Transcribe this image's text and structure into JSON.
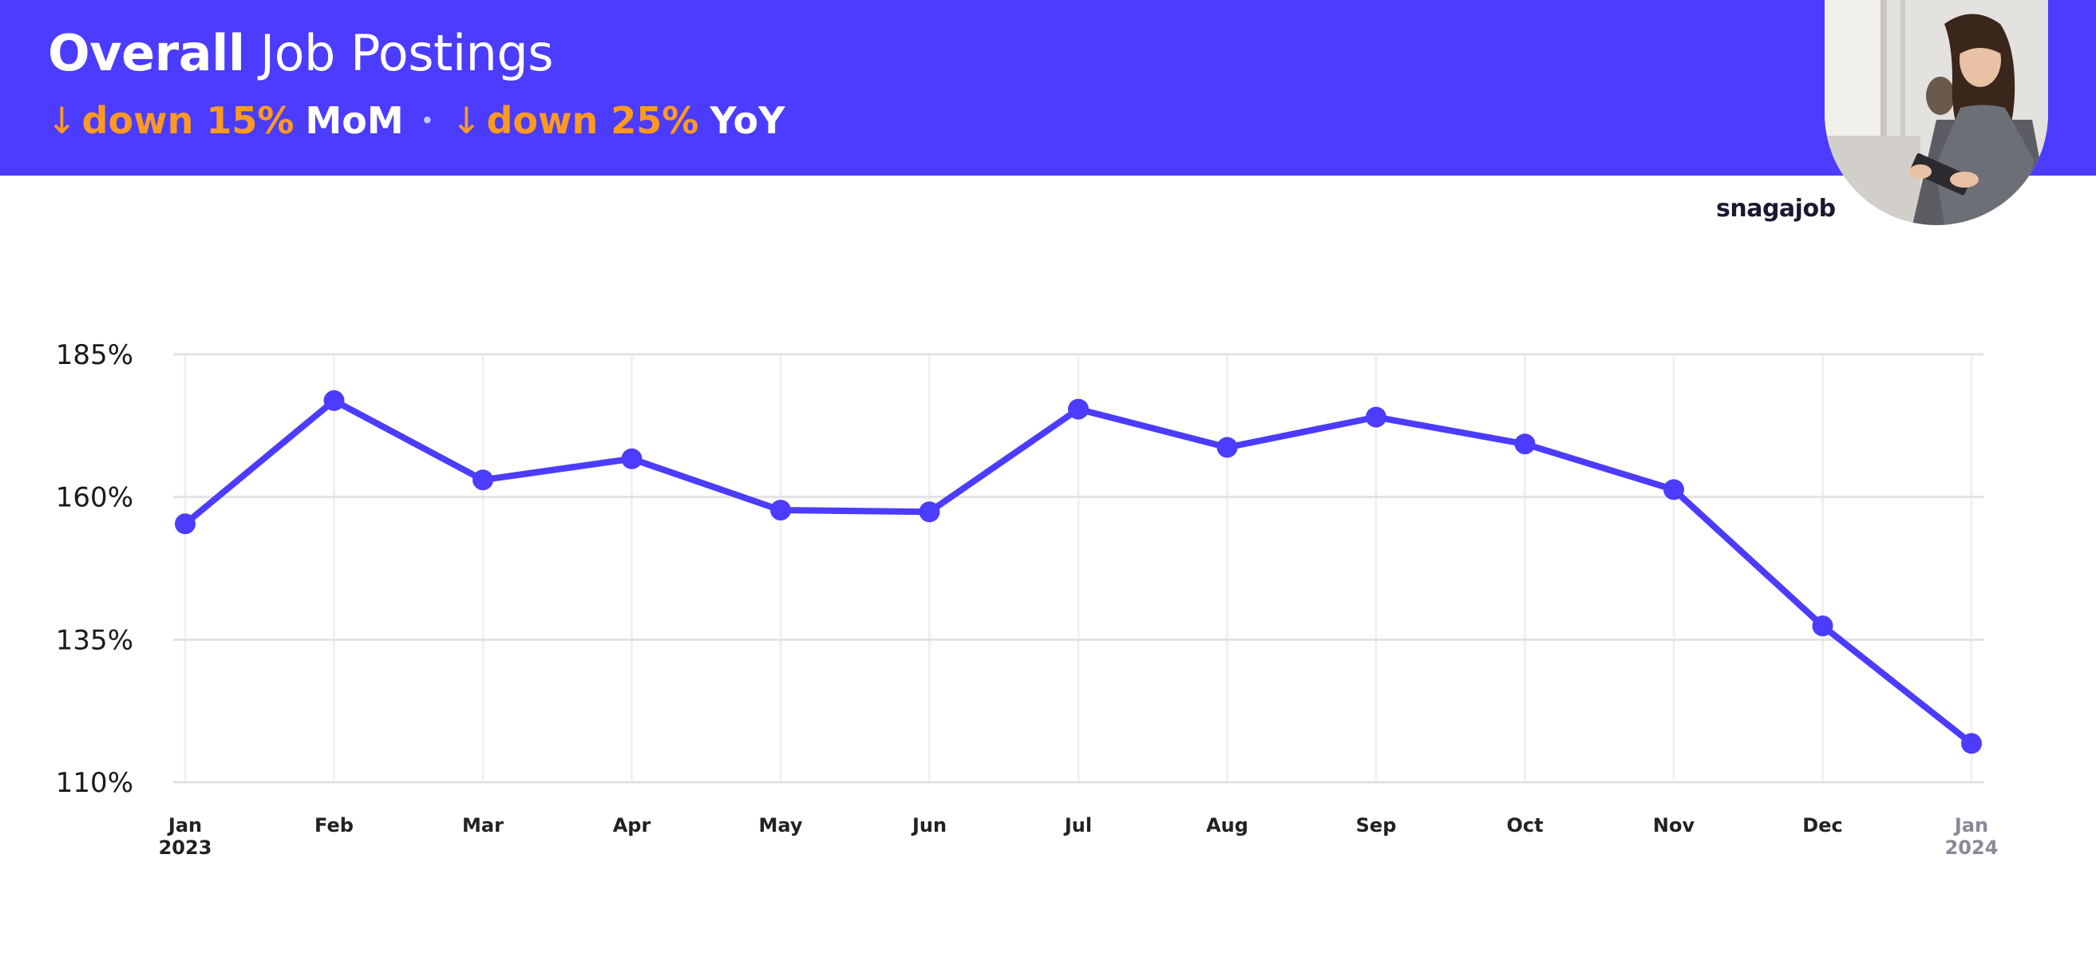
{
  "header": {
    "title_bold": "Overall",
    "title_rest": "Job Postings",
    "stats": [
      {
        "arrow": "↓",
        "change": "down 15%",
        "period": "MoM"
      },
      {
        "arrow": "↓",
        "change": "down 25%",
        "period": "YoY"
      }
    ],
    "separator": "•",
    "background_color": "#4b3cff",
    "accent_color": "#ff9a1f"
  },
  "brand": {
    "logo_text": "snagajob"
  },
  "chart_data": {
    "type": "line",
    "title": "",
    "xlabel": "",
    "ylabel": "",
    "categories": [
      "Jan 2023",
      "Feb",
      "Mar",
      "Apr",
      "May",
      "Jun",
      "Jul",
      "Aug",
      "Sep",
      "Oct",
      "Nov",
      "Dec",
      "Jan 2024"
    ],
    "x_tick_labels": [
      {
        "line1": "Jan",
        "line2": "2023"
      },
      {
        "line1": "Feb",
        "line2": ""
      },
      {
        "line1": "Mar",
        "line2": ""
      },
      {
        "line1": "Apr",
        "line2": ""
      },
      {
        "line1": "May",
        "line2": ""
      },
      {
        "line1": "Jun",
        "line2": ""
      },
      {
        "line1": "Jul",
        "line2": ""
      },
      {
        "line1": "Aug",
        "line2": ""
      },
      {
        "line1": "Sep",
        "line2": ""
      },
      {
        "line1": "Oct",
        "line2": ""
      },
      {
        "line1": "Nov",
        "line2": ""
      },
      {
        "line1": "Dec",
        "line2": ""
      },
      {
        "line1": "Jan",
        "line2": "2024"
      }
    ],
    "series": [
      {
        "values": [
          155.3,
          176.9,
          163.0,
          166.7,
          157.7,
          157.4,
          175.4,
          168.7,
          174.0,
          169.3,
          161.3,
          137.4,
          116.8
        ],
        "color": "#4b3cff"
      }
    ],
    "ylim": [
      110,
      185
    ],
    "yticks": [
      110,
      135,
      160,
      185
    ],
    "ytick_labels": [
      "110%",
      "135%",
      "160%",
      "185%"
    ],
    "grid": true,
    "legend": "none"
  }
}
